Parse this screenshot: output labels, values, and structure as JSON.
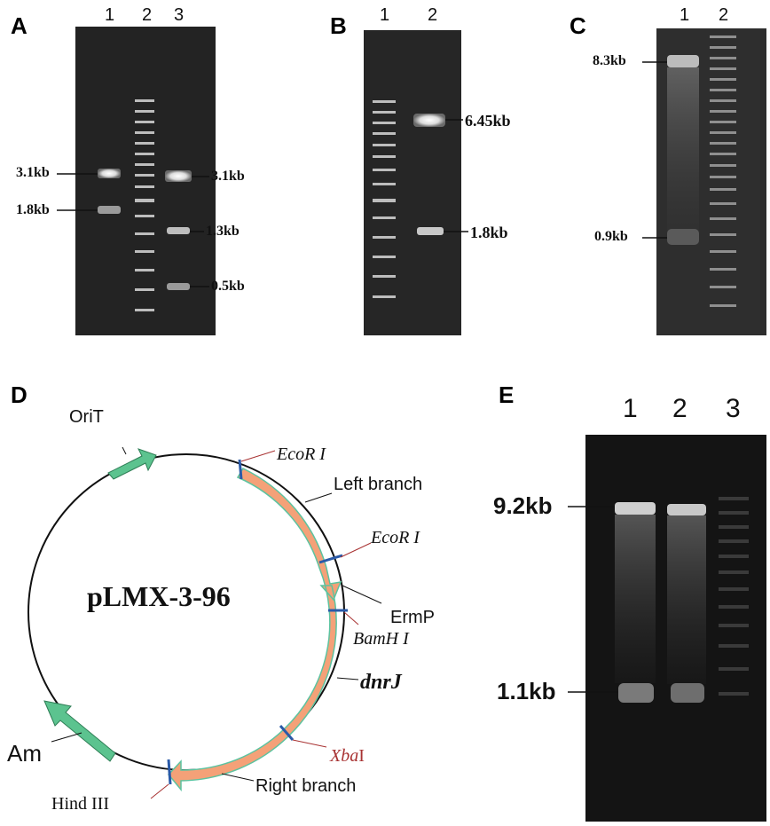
{
  "panels": {
    "A": {
      "letter": "A",
      "lanes": [
        "1",
        "2",
        "3"
      ],
      "left_labels": [
        "3.1kb",
        "1.8kb"
      ],
      "right_labels": [
        "3.1kb",
        "1.3kb",
        "0.5kb"
      ]
    },
    "B": {
      "letter": "B",
      "lanes": [
        "1",
        "2"
      ],
      "right_labels": [
        "6.45kb",
        "1.8kb"
      ]
    },
    "C": {
      "letter": "C",
      "lanes": [
        "1",
        "2"
      ],
      "left_labels": [
        "8.3kb",
        "0.9kb"
      ]
    },
    "D": {
      "letter": "D",
      "plasmid_name": "pLMX-3-96",
      "features": {
        "orit": "OriT",
        "left_branch": "Left branch",
        "ermp": "ErmP",
        "dnrj": "dnrJ",
        "right_branch": "Right branch",
        "am": "Am"
      },
      "sites": {
        "ecori_1": "EcoR I",
        "ecori_2": "EcoR I",
        "bamhi": "BamH I",
        "xbai_italic": "Xba",
        "xbai_roman": "I",
        "hindiii": "Hind III"
      }
    },
    "E": {
      "letter": "E",
      "lanes": [
        "1",
        "2",
        "3"
      ],
      "left_labels": [
        "9.2kb",
        "1.1kb"
      ]
    }
  },
  "colors": {
    "gel_bg": "#262626",
    "band": "#e8e8e8",
    "arrow_orange": "#f4a178",
    "arrow_green": "#5cc38f",
    "site_blue": "#2a5aa8",
    "site_label_red": "#a83232"
  }
}
